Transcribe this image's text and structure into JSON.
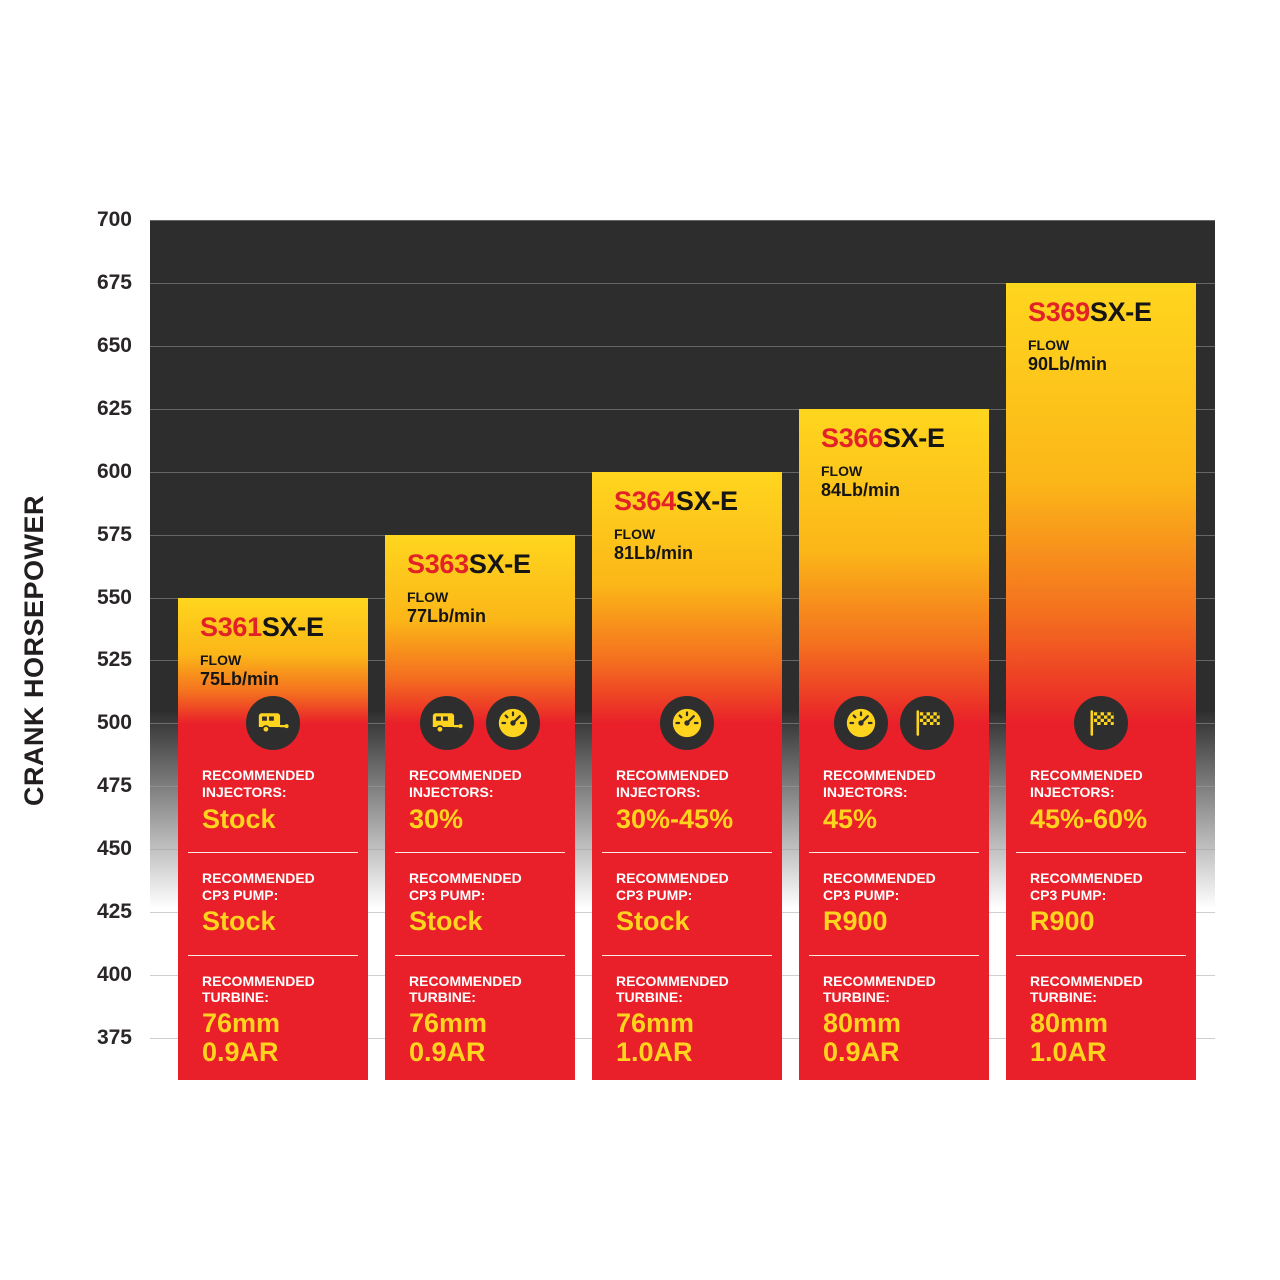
{
  "colors": {
    "bar_yellow_top": "#ffd61e",
    "bar_orange_upper": "#fbb618",
    "bar_orange_lower": "#f4701f",
    "bar_red": "#e9202a",
    "model_red": "#e32227",
    "value_yellow": "#ffd41e",
    "plot_dark": "#2d2d2d",
    "axis_text": "#2a2627"
  },
  "chart_data": {
    "type": "bar",
    "title": "",
    "ylabel": "CRANK HORSEPOWER",
    "xlabel": "",
    "ylim": [
      375,
      700
    ],
    "grid": true,
    "legend": "none",
    "yticks": [
      700,
      675,
      650,
      625,
      600,
      575,
      550,
      525,
      500,
      475,
      450,
      425,
      400,
      375
    ],
    "bars": [
      {
        "model_prefix": "S361",
        "model_suffix": "SX-E",
        "flow_label": "FLOW",
        "flow": "75Lb/min",
        "crank_hp": 550,
        "icons": [
          "trailer-icon"
        ],
        "injectors_label": "RECOMMENDED\nINJECTORS:",
        "injectors": "Stock",
        "cp3_label": "RECOMMENDED\nCP3 PUMP:",
        "cp3": "Stock",
        "turbine_label": "RECOMMENDED\nTURBINE:",
        "turbine_line1": "76mm",
        "turbine_line2": "0.9AR"
      },
      {
        "model_prefix": "S363",
        "model_suffix": "SX-E",
        "flow_label": "FLOW",
        "flow": "77Lb/min",
        "crank_hp": 575,
        "icons": [
          "trailer-icon",
          "gauge-icon"
        ],
        "injectors_label": "RECOMMENDED\nINJECTORS:",
        "injectors": "30%",
        "cp3_label": "RECOMMENDED\nCP3 PUMP:",
        "cp3": "Stock",
        "turbine_label": "RECOMMENDED\nTURBINE:",
        "turbine_line1": "76mm",
        "turbine_line2": "0.9AR"
      },
      {
        "model_prefix": "S364",
        "model_suffix": "SX-E",
        "flow_label": "FLOW",
        "flow": "81Lb/min",
        "crank_hp": 600,
        "icons": [
          "gauge-icon"
        ],
        "injectors_label": "RECOMMENDED\nINJECTORS:",
        "injectors": "30%-45%",
        "cp3_label": "RECOMMENDED\nCP3 PUMP:",
        "cp3": "Stock",
        "turbine_label": "RECOMMENDED\nTURBINE:",
        "turbine_line1": "76mm",
        "turbine_line2": "1.0AR"
      },
      {
        "model_prefix": "S366",
        "model_suffix": "SX-E",
        "flow_label": "FLOW",
        "flow": "84Lb/min",
        "crank_hp": 625,
        "icons": [
          "gauge-icon",
          "racing-flag-icon"
        ],
        "injectors_label": "RECOMMENDED\nINJECTORS:",
        "injectors": "45%",
        "cp3_label": "RECOMMENDED\nCP3 PUMP:",
        "cp3": "R900",
        "turbine_label": "RECOMMENDED\nTURBINE:",
        "turbine_line1": "80mm",
        "turbine_line2": "0.9AR"
      },
      {
        "model_prefix": "S369",
        "model_suffix": "SX-E",
        "flow_label": "FLOW",
        "flow": "90Lb/min",
        "crank_hp": 675,
        "icons": [
          "racing-flag-icon"
        ],
        "injectors_label": "RECOMMENDED\nINJECTORS:",
        "injectors": "45%-60%",
        "cp3_label": "RECOMMENDED\nCP3 PUMP:",
        "cp3": "R900",
        "turbine_label": "RECOMMENDED\nTURBINE:",
        "turbine_line1": "80mm",
        "turbine_line2": "1.0AR"
      }
    ]
  }
}
